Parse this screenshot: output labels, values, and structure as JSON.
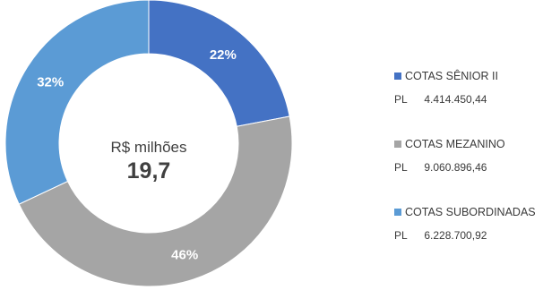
{
  "chart_data": {
    "type": "pie",
    "donut": true,
    "center_label": "R$ milhões",
    "center_value": "19,7",
    "slices": [
      {
        "name": "COTAS SÊNIOR II",
        "value": 22,
        "label": "22%",
        "color": "#4472c4"
      },
      {
        "name": "COTAS MEZANINO",
        "value": 46,
        "label": "46%",
        "color": "#a5a5a5"
      },
      {
        "name": "COTAS SUBORDINADAS",
        "value": 32,
        "label": "32%",
        "color": "#5b9bd5"
      }
    ],
    "legend": {
      "position": "right",
      "entries": [
        {
          "name": "COTAS SÊNIOR II",
          "pl_label": "PL",
          "pl_value": "4.414.450,44",
          "color": "#4472c4"
        },
        {
          "name": "COTAS MEZANINO",
          "pl_label": "PL",
          "pl_value": "9.060.896,46",
          "color": "#a5a5a5"
        },
        {
          "name": "COTAS SUBORDINADAS",
          "pl_label": "PL",
          "pl_value": "6.228.700,92",
          "color": "#5b9bd5"
        }
      ]
    }
  }
}
